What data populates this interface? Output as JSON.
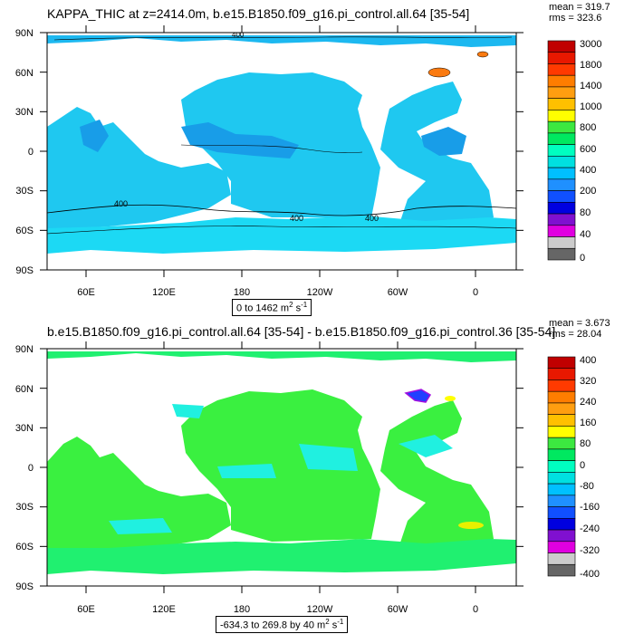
{
  "chart_data": [
    {
      "type": "heatmap",
      "title": "KAPPA_THIC at z=2414.0m, b.e15.B1850.f09_g16.pi_control.all.64 [35-54]",
      "stats_mean": "mean = 319.7",
      "stats_rms": "rms = 323.6",
      "subtitle_text": "0 to 1462 m",
      "subtitle_unit_sup": "2",
      "subtitle_unit_s": " s",
      "subtitle_unit_sup2": "-1",
      "x_tick_labels": [
        "60E",
        "120E",
        "180",
        "120W",
        "60W",
        "0"
      ],
      "y_tick_labels": [
        "90N",
        "60N",
        "30N",
        "0",
        "30S",
        "60S",
        "90S"
      ],
      "contour_labels": [
        "400",
        "400",
        "400",
        "400"
      ],
      "colorbar": {
        "labels": [
          "3000",
          "1800",
          "1400",
          "1000",
          "800",
          "600",
          "400",
          "200",
          "80",
          "40",
          "0"
        ],
        "colors": [
          "#c00000",
          "#e81800",
          "#ff3a00",
          "#ff7d00",
          "#ff9e10",
          "#ffc000",
          "#ffff00",
          "#3ce840",
          "#00e860",
          "#00ffc0",
          "#00e0e0",
          "#00c0ff",
          "#1f90ff",
          "#1050ff",
          "#0000e0",
          "#8010d0",
          "#e000e0",
          "#cccccc",
          "#666666"
        ]
      },
      "field_summary": {
        "mean": 319.7,
        "rms": 323.6,
        "min": 0,
        "max": 1462
      }
    },
    {
      "type": "heatmap",
      "title": "b.e15.B1850.f09_g16.pi_control.all.64 [35-54] - b.e15.B1850.f09_g16.pi_control.36 [35-54]",
      "stats_mean": "mean = 3.673",
      "stats_rms": "rms = 28.04",
      "subtitle_text": "-634.3 to 269.8 by 40 m",
      "subtitle_unit_sup": "2",
      "subtitle_unit_s": " s",
      "subtitle_unit_sup2": "-1",
      "x_tick_labels": [
        "60E",
        "120E",
        "180",
        "120W",
        "60W",
        "0"
      ],
      "y_tick_labels": [
        "90N",
        "60N",
        "30N",
        "0",
        "30S",
        "60S",
        "90S"
      ],
      "colorbar": {
        "labels": [
          "400",
          "320",
          "240",
          "160",
          "80",
          "0",
          "-80",
          "-160",
          "-240",
          "-320",
          "-400"
        ],
        "colors": [
          "#c00000",
          "#e81800",
          "#ff3a00",
          "#ff7d00",
          "#ff9e10",
          "#ffc000",
          "#ffff00",
          "#3ce840",
          "#00e860",
          "#00ffc0",
          "#00e0e0",
          "#00c0ff",
          "#1f90ff",
          "#1050ff",
          "#0000e0",
          "#8010d0",
          "#e000e0",
          "#cccccc",
          "#666666"
        ]
      },
      "field_summary": {
        "mean": 3.673,
        "rms": 28.04,
        "min": -634.3,
        "max": 269.8,
        "interval": 40
      }
    }
  ]
}
